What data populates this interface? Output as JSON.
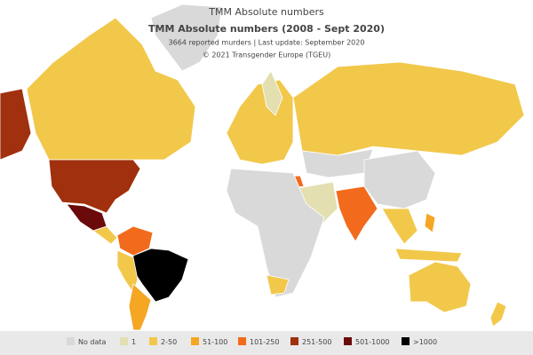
{
  "header": {
    "title": "TMM Absolute numbers",
    "subtitle": "TMM Absolute numbers (2008 - Sept 2020)",
    "note": "3664 reported murders | Last update: September 2020",
    "credit": "© 2021 Transgender Europe (TGEU)"
  },
  "legend": [
    {
      "label": "No data",
      "color": "#d9d9d9"
    },
    {
      "label": "1",
      "color": "#e3dfb0"
    },
    {
      "label": "2-50",
      "color": "#f2c84b"
    },
    {
      "label": "51-100",
      "color": "#f5a623"
    },
    {
      "label": "101-250",
      "color": "#f26a1b"
    },
    {
      "label": "251-500",
      "color": "#a0300e"
    },
    {
      "label": "501-1000",
      "color": "#6b0a0a"
    },
    {
      "label": ">1000",
      "color": "#000000"
    }
  ]
}
